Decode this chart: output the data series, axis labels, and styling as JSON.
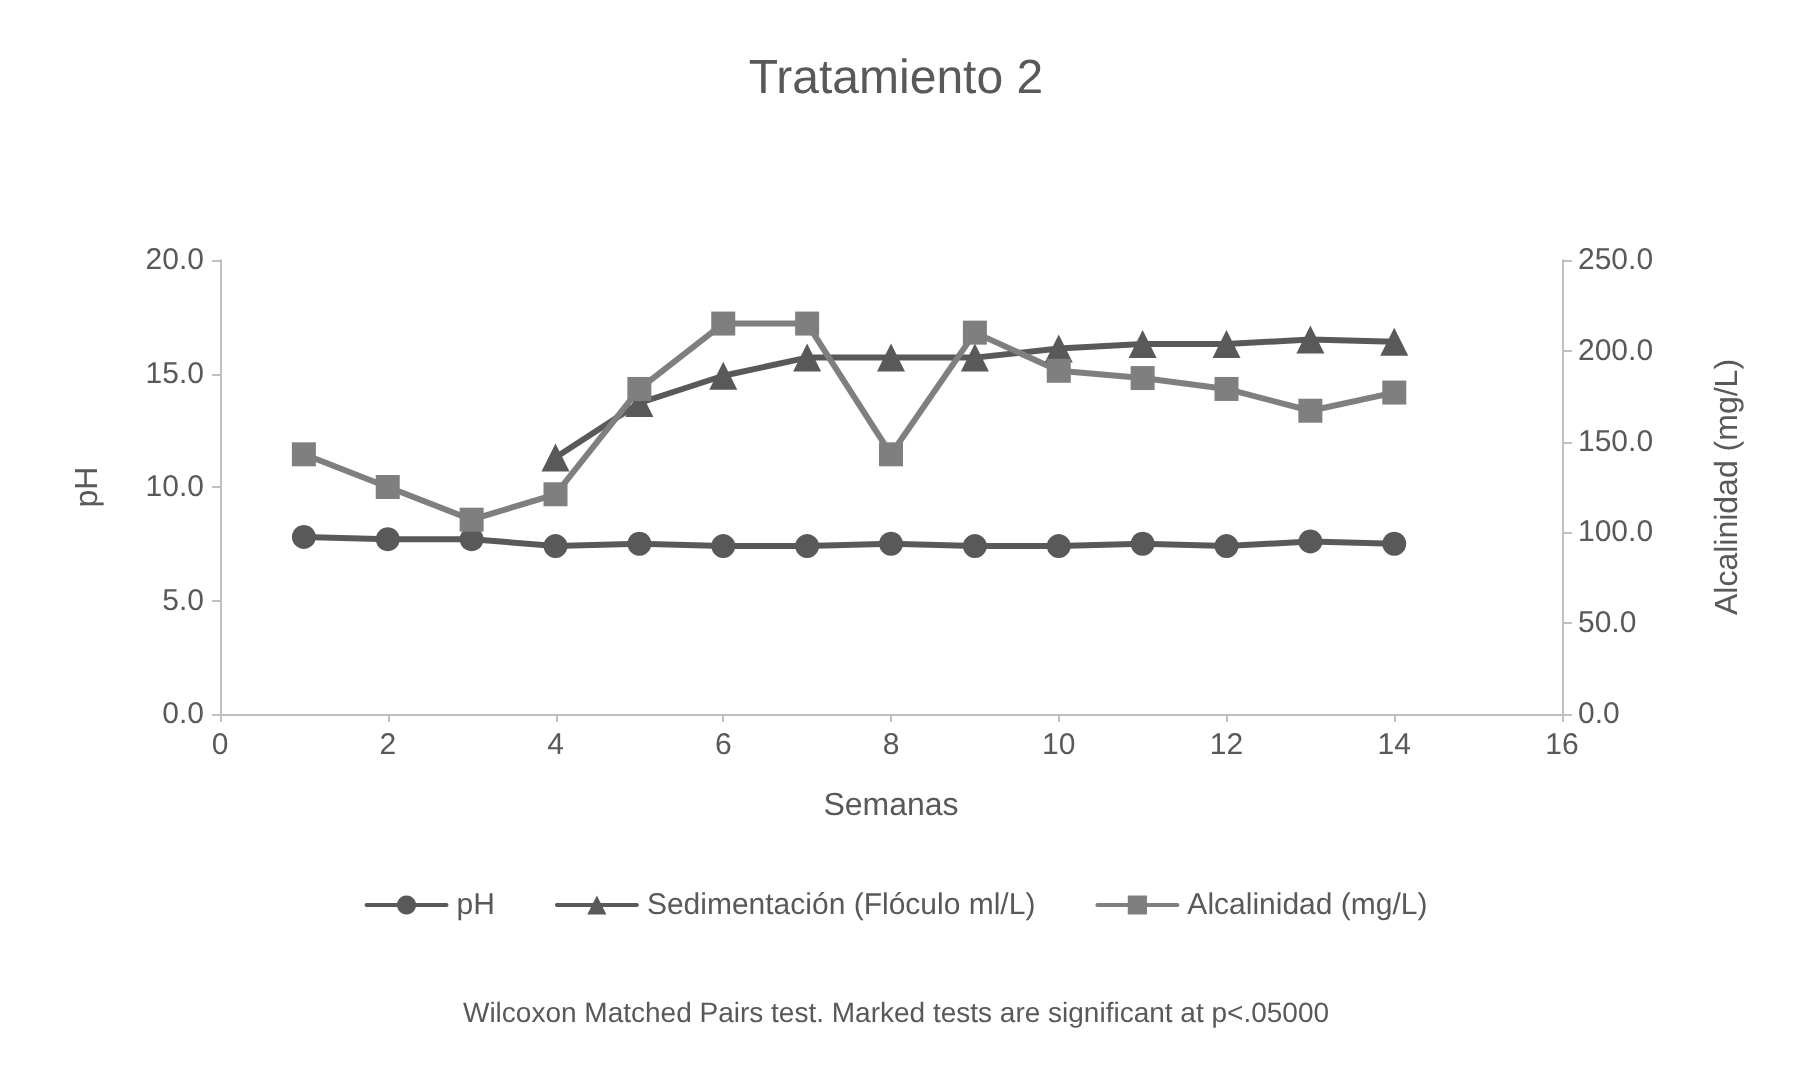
{
  "chart_data": {
    "type": "line",
    "title": "Tratamiento 2",
    "xlabel": "Semanas",
    "ylabel": "pH",
    "y2label": "Alcalinidad (mg/L)",
    "x": [
      1,
      2,
      3,
      4,
      5,
      6,
      7,
      8,
      9,
      10,
      11,
      12,
      13,
      14
    ],
    "series": [
      {
        "name": "pH",
        "color": "#595959",
        "marker": "circle",
        "values": [
          7.8,
          7.7,
          7.7,
          7.4,
          7.5,
          7.4,
          7.4,
          7.5,
          7.4,
          7.4,
          7.5,
          7.4,
          7.6,
          7.5
        ]
      },
      {
        "name": "Sedimentación (Flóculo ml/L)",
        "color": "#595959",
        "marker": "triangle",
        "values": [
          null,
          null,
          null,
          11.3,
          13.7,
          14.9,
          15.7,
          15.7,
          15.7,
          16.1,
          16.3,
          16.3,
          16.5,
          16.4
        ]
      },
      {
        "name": "Alcalinidad (mg/L)",
        "color": "#7f7f7f",
        "marker": "square",
        "axis": "y2",
        "values": [
          143,
          125,
          107,
          121,
          179,
          215,
          215,
          143,
          210,
          189,
          185,
          179,
          167,
          177
        ]
      }
    ],
    "xlim": [
      0,
      16
    ],
    "xticks": [
      0,
      2,
      4,
      6,
      8,
      10,
      12,
      14,
      16
    ],
    "ylim": [
      0,
      20
    ],
    "yticks": [
      {
        "value": 0,
        "label": "0.0"
      },
      {
        "value": 5,
        "label": "5.0"
      },
      {
        "value": 10,
        "label": "10.0"
      },
      {
        "value": 15,
        "label": "15.0"
      },
      {
        "value": 20,
        "label": "20.0"
      }
    ],
    "y2lim": [
      0,
      250
    ],
    "y2ticks": [
      {
        "value": 0,
        "label": "0.0"
      },
      {
        "value": 50,
        "label": "50.0"
      },
      {
        "value": 100,
        "label": "100.0"
      },
      {
        "value": 150,
        "label": "150.0"
      },
      {
        "value": 200,
        "label": "200.0"
      },
      {
        "value": 250,
        "label": "250.0"
      }
    ],
    "grid": false,
    "legend": "bottom",
    "line_style": "solid",
    "annotations": [
      "Wilcoxon Matched Pairs test. Marked tests are significant at p<.05000"
    ]
  }
}
